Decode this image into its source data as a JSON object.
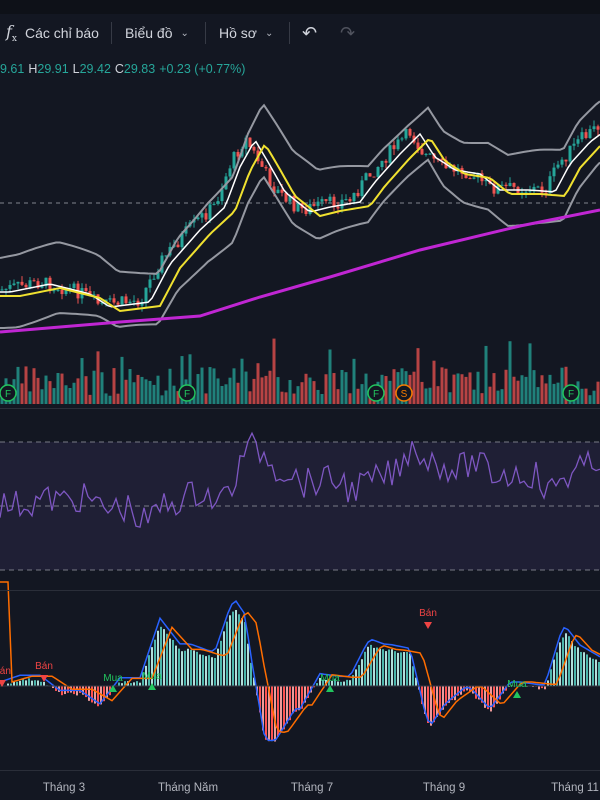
{
  "toolbar": {
    "indicators_label": "Các chỉ báo",
    "chart_menu_label": "Biểu đồ",
    "profile_menu_label": "Hồ sơ",
    "undo_icon": "undo-icon",
    "redo_icon": "redo-icon",
    "fx_icon": "fx-icon"
  },
  "ohlc": {
    "open_partial": "9.61",
    "high_key": "H",
    "high": "29.91",
    "low_key": "L",
    "low": "29.42",
    "close_key": "C",
    "close": "29.83",
    "change": "+0.23 (+0.77%)"
  },
  "markers": {
    "events": [
      "F",
      "F",
      "F",
      "S",
      "F"
    ],
    "buy_label": "Mua",
    "sell_label": "Bán"
  },
  "x_axis": [
    "Tháng 3",
    "Tháng Năm",
    "Tháng 7",
    "Tháng 9",
    "Tháng 11"
  ],
  "colors": {
    "background": "#131722",
    "up": "#26a69a",
    "down": "#ef5350",
    "bollinger": "#9598a1",
    "ema_fast": "#ffffff",
    "ema_slow": "#f0e130",
    "ma_long": "#c026d3",
    "rsi": "#7e57c2",
    "macd": "#2962ff",
    "signal": "#ff6d00",
    "buy": "#22c55e",
    "sell": "#ef4444"
  }
}
